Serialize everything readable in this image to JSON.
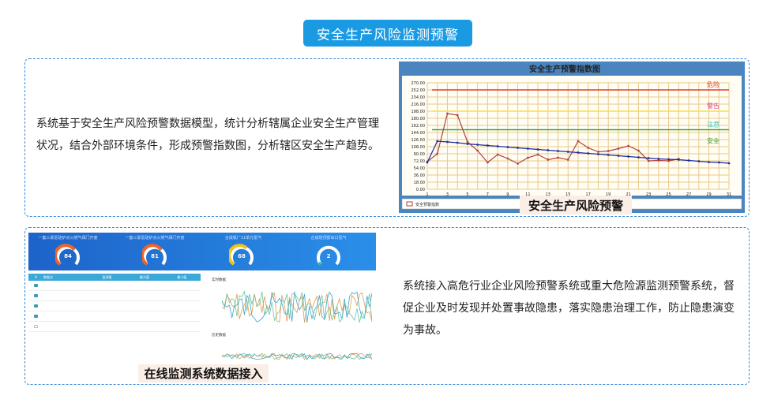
{
  "header": {
    "title": "安全生产风险监测预警"
  },
  "section1": {
    "description": "系统基于安全生产风险预警数据模型，统计分析辖属企业安全生产管理状况，结合外部环境条件，形成预警指数图，分析辖区安全生产趋势。",
    "caption": "安全生产风险预警"
  },
  "section2": {
    "description": "系统接入高危行业企业风险预警系统或重大危险源监测预警系统，督促企业及时发现并处置事故隐患，落实隐患治理工作，防止隐患演变为事故。",
    "caption": "在线监测系统数据接入",
    "gauges": [
      {
        "value": "84",
        "color": "#f0642a"
      },
      {
        "value": "81",
        "color": "#f0642a"
      },
      {
        "value": "68",
        "color": "#f2c21c"
      },
      {
        "value": "2",
        "color": "#2ec49a"
      }
    ],
    "realtime_title": "实时数据",
    "history_title": "历史数据",
    "table_rows": [
      {
        "checked": true
      },
      {
        "checked": true
      },
      {
        "checked": true
      },
      {
        "checked": true
      },
      {
        "checked": false
      }
    ]
  },
  "chart_data": {
    "type": "line",
    "title": "安全生产预警指数图",
    "x": [
      1,
      2,
      3,
      4,
      5,
      6,
      7,
      8,
      9,
      10,
      11,
      12,
      13,
      14,
      15,
      16,
      17,
      18,
      19,
      20,
      21,
      22,
      23,
      24,
      25,
      26,
      27,
      28,
      29,
      30,
      31
    ],
    "xticks": [
      1,
      3,
      5,
      7,
      9,
      11,
      13,
      15,
      17,
      19,
      21,
      23,
      25,
      27,
      29,
      31
    ],
    "ylim": [
      0,
      270
    ],
    "yticks": [
      "0.00",
      "18.00",
      "36.00",
      "54.00",
      "72.00",
      "90.00",
      "108.00",
      "126.00",
      "144.00",
      "162.00",
      "180.00",
      "198.00",
      "216.00",
      "234.00",
      "252.00",
      "270.00"
    ],
    "grid": true,
    "series": [
      {
        "name": "安全预警指数",
        "color": "#b0413e",
        "values": [
          70,
          90,
          192,
          188,
          120,
          98,
          68,
          88,
          78,
          65,
          80,
          88,
          75,
          80,
          75,
          122,
          105,
          95,
          97,
          103,
          110,
          98,
          72,
          73,
          72,
          77,
          null,
          null,
          null,
          null,
          null
        ]
      },
      {
        "color": "#1c2a9c",
        "values": [
          68,
          122,
          120,
          118,
          115,
          113,
          111,
          109,
          107,
          105,
          103,
          101,
          99,
          97,
          95,
          93,
          91,
          89,
          87,
          85,
          83,
          81,
          79,
          77,
          76,
          75,
          73,
          71,
          69,
          68,
          66
        ]
      }
    ],
    "thresholds": [
      {
        "label": "危险",
        "value": 252,
        "color": "#e53a2a"
      },
      {
        "label": "警告",
        "value": 198,
        "color": "#f5e23a"
      },
      {
        "label": "注意",
        "value": 151,
        "color": "#3aa33a"
      },
      {
        "label": "安全",
        "value": 125,
        "color": "#3aa33a"
      }
    ],
    "legend": "bottom-left"
  }
}
